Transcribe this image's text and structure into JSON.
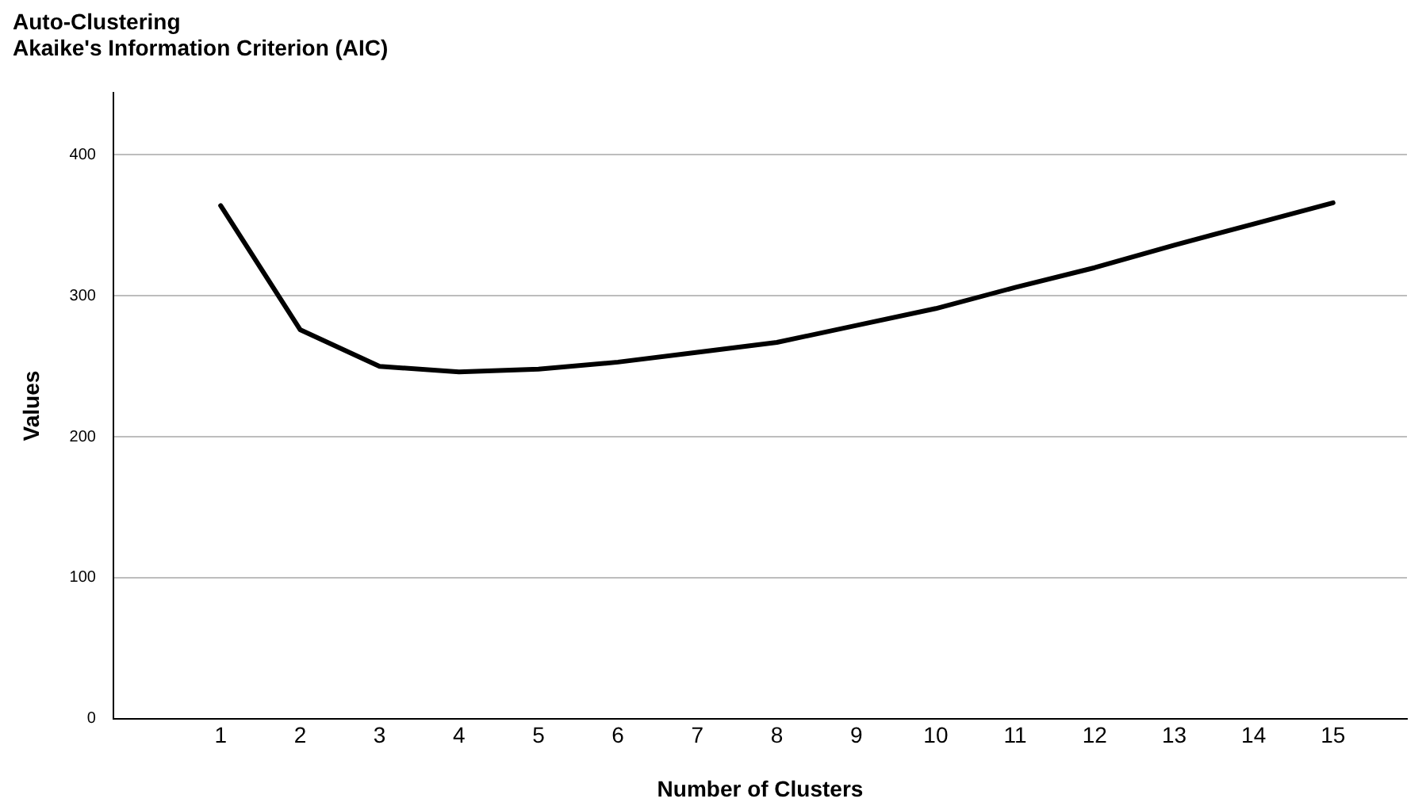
{
  "chart_data": {
    "type": "line",
    "title": "Auto-Clustering",
    "subtitle": "Akaike's Information Criterion (AIC)",
    "xlabel": "Number of Clusters",
    "ylabel": "Values",
    "x": [
      1,
      2,
      3,
      4,
      5,
      6,
      7,
      8,
      9,
      10,
      11,
      12,
      13,
      14,
      15
    ],
    "series": [
      {
        "color": "#000000",
        "values": [
          364,
          276,
          250,
          246,
          248,
          253,
          260,
          267,
          279,
          291,
          306,
          320,
          336,
          351,
          366
        ]
      }
    ],
    "xlim": [
      -0.35,
      15.93
    ],
    "xticks": [
      1,
      2,
      3,
      4,
      5,
      6,
      7,
      8,
      9,
      10,
      11,
      12,
      13,
      14,
      15
    ],
    "ylim": [
      0,
      444
    ],
    "yticks": [
      0,
      100,
      200,
      300,
      400
    ],
    "grid": "y",
    "legend": false,
    "marker": "none",
    "line_style": "solid"
  }
}
